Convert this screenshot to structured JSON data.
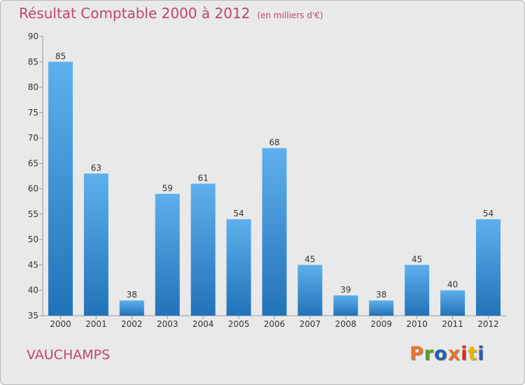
{
  "title": "Résultat Comptable 2000 à 2012",
  "unit_note": "(en milliers d'€)",
  "commune": "VAUCHAMPS",
  "brand": "Proxiti",
  "brand_colors": [
    "#e8732a",
    "#5b9a2c",
    "#1f5fae",
    "#e8732a",
    "#d62e2e",
    "#e6b800",
    "#1f5fae"
  ],
  "chart_data": {
    "type": "bar",
    "title": "Résultat Comptable 2000 à 2012",
    "categories": [
      "2000",
      "2001",
      "2002",
      "2003",
      "2004",
      "2005",
      "2006",
      "2007",
      "2008",
      "2009",
      "2010",
      "2011",
      "2012"
    ],
    "values": [
      85,
      63,
      38,
      59,
      61,
      54,
      68,
      45,
      39,
      38,
      45,
      40,
      54
    ],
    "ylim": [
      35,
      90
    ],
    "yticks": [
      35,
      40,
      45,
      50,
      55,
      60,
      65,
      70,
      75,
      80,
      85,
      90
    ],
    "grid": false,
    "bar_color": "#3a8fd6"
  }
}
